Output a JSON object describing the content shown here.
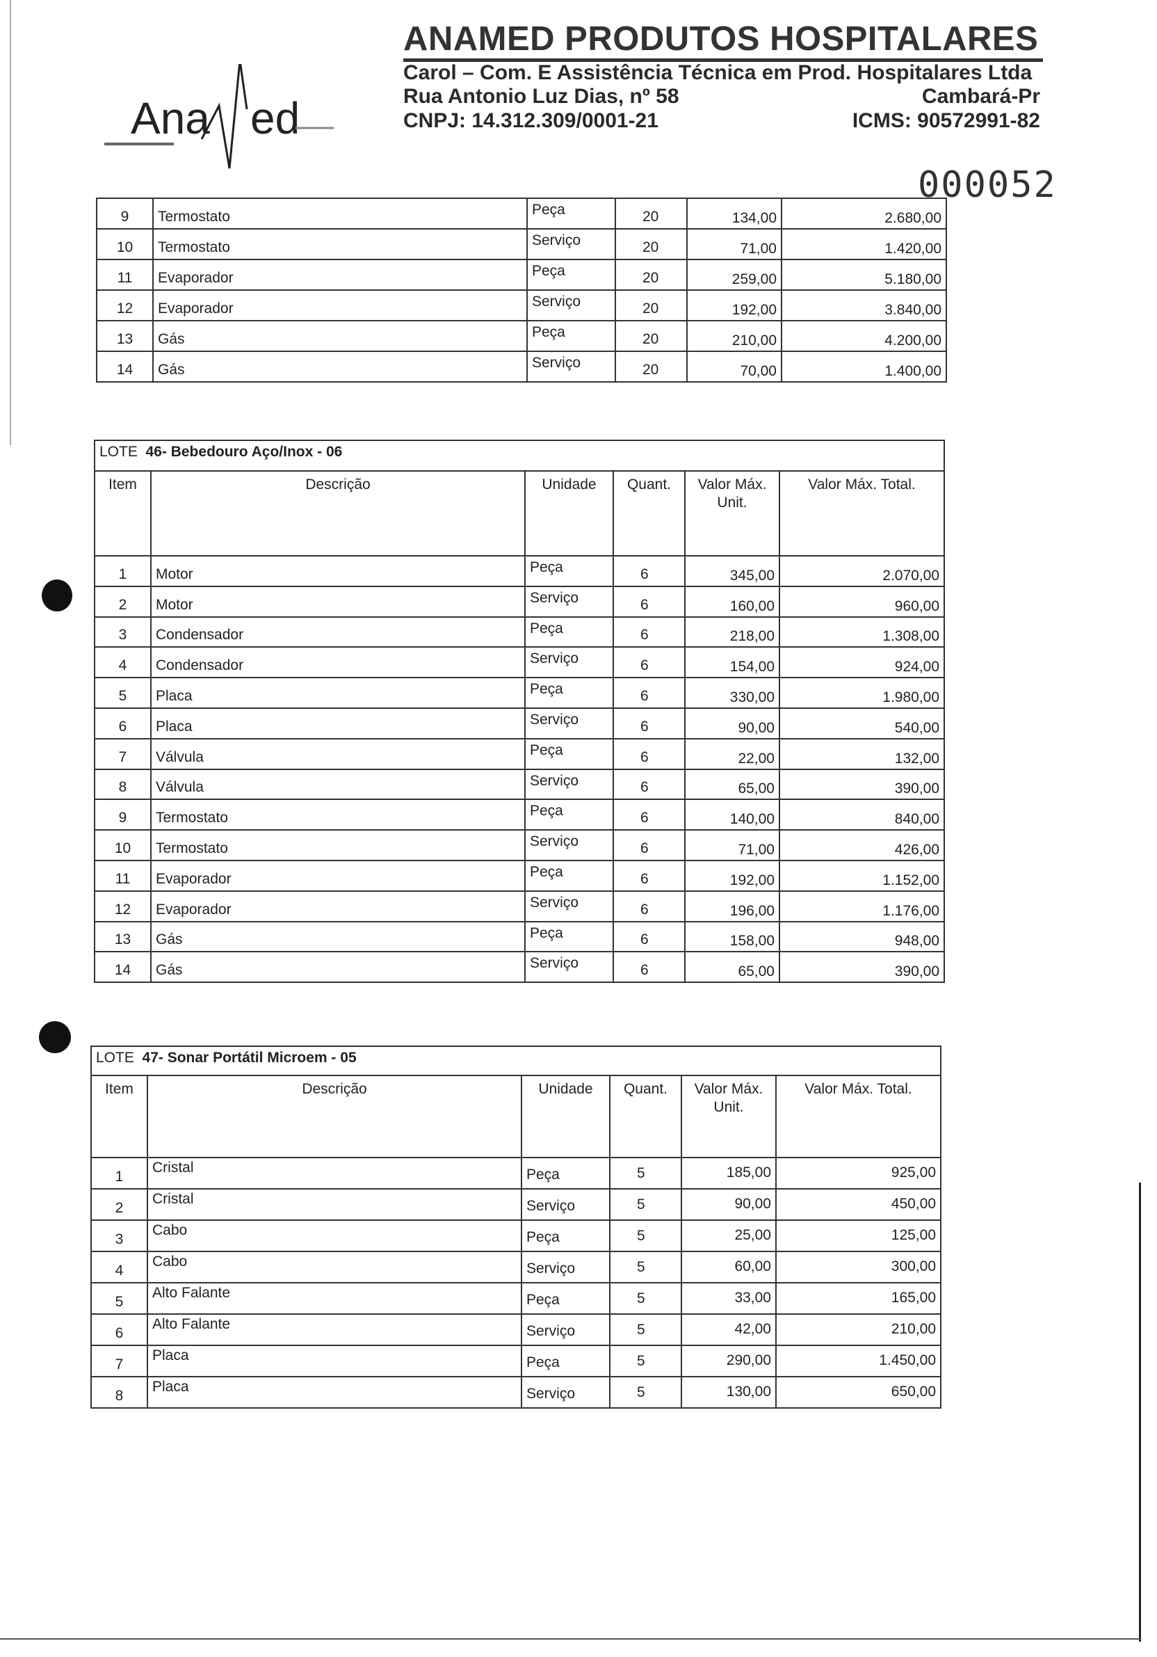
{
  "header": {
    "logo_text": "AnaMed",
    "company_title": "ANAMED  PRODUTOS  HOSPITALARES",
    "legal_name": "Carol – Com. E Assistência Técnica em Prod. Hospitalares Ltda",
    "address": "Rua Antonio Luz Dias, nº 58",
    "city": "Cambará-Pr",
    "cnpj": "CNPJ: 14.312.309/0001-21",
    "icms": "ICMS: 90572991-82",
    "page_number": "000052"
  },
  "columns": {
    "item": "Item",
    "descricao": "Descrição",
    "unidade": "Unidade",
    "quant": "Quant.",
    "valor_unit": "Valor Máx. Unit.",
    "valor_total": "Valor Máx. Total."
  },
  "table_continued": {
    "rows": [
      {
        "item": "9",
        "desc": "Termostato",
        "unit": "Peça",
        "qty": "20",
        "price": "134,00",
        "total": "2.680,00"
      },
      {
        "item": "10",
        "desc": "Termostato",
        "unit": "Serviço",
        "qty": "20",
        "price": "71,00",
        "total": "1.420,00"
      },
      {
        "item": "11",
        "desc": "Evaporador",
        "unit": "Peça",
        "qty": "20",
        "price": "259,00",
        "total": "5.180,00"
      },
      {
        "item": "12",
        "desc": "Evaporador",
        "unit": "Serviço",
        "qty": "20",
        "price": "192,00",
        "total": "3.840,00"
      },
      {
        "item": "13",
        "desc": "Gás",
        "unit": "Peça",
        "qty": "20",
        "price": "210,00",
        "total": "4.200,00"
      },
      {
        "item": "14",
        "desc": "Gás",
        "unit": "Serviço",
        "qty": "20",
        "price": "70,00",
        "total": "1.400,00"
      }
    ]
  },
  "lote46": {
    "label": "LOTE",
    "title": "46- Bebedouro Aço/Inox - 06",
    "rows": [
      {
        "item": "1",
        "desc": "Motor",
        "unit": "Peça",
        "qty": "6",
        "price": "345,00",
        "total": "2.070,00"
      },
      {
        "item": "2",
        "desc": "Motor",
        "unit": "Serviço",
        "qty": "6",
        "price": "160,00",
        "total": "960,00"
      },
      {
        "item": "3",
        "desc": "Condensador",
        "unit": "Peça",
        "qty": "6",
        "price": "218,00",
        "total": "1.308,00"
      },
      {
        "item": "4",
        "desc": "Condensador",
        "unit": "Serviço",
        "qty": "6",
        "price": "154,00",
        "total": "924,00"
      },
      {
        "item": "5",
        "desc": "Placa",
        "unit": "Peça",
        "qty": "6",
        "price": "330,00",
        "total": "1.980,00"
      },
      {
        "item": "6",
        "desc": "Placa",
        "unit": "Serviço",
        "qty": "6",
        "price": "90,00",
        "total": "540,00"
      },
      {
        "item": "7",
        "desc": "Válvula",
        "unit": "Peça",
        "qty": "6",
        "price": "22,00",
        "total": "132,00"
      },
      {
        "item": "8",
        "desc": "Válvula",
        "unit": "Serviço",
        "qty": "6",
        "price": "65,00",
        "total": "390,00"
      },
      {
        "item": "9",
        "desc": "Termostato",
        "unit": "Peça",
        "qty": "6",
        "price": "140,00",
        "total": "840,00"
      },
      {
        "item": "10",
        "desc": "Termostato",
        "unit": "Serviço",
        "qty": "6",
        "price": "71,00",
        "total": "426,00"
      },
      {
        "item": "11",
        "desc": "Evaporador",
        "unit": "Peça",
        "qty": "6",
        "price": "192,00",
        "total": "1.152,00"
      },
      {
        "item": "12",
        "desc": "Evaporador",
        "unit": "Serviço",
        "qty": "6",
        "price": "196,00",
        "total": "1.176,00"
      },
      {
        "item": "13",
        "desc": "Gás",
        "unit": "Peça",
        "qty": "6",
        "price": "158,00",
        "total": "948,00"
      },
      {
        "item": "14",
        "desc": "Gás",
        "unit": "Serviço",
        "qty": "6",
        "price": "65,00",
        "total": "390,00"
      }
    ]
  },
  "lote47": {
    "label": "LOTE",
    "title": "47- Sonar Portátil Microem - 05",
    "rows": [
      {
        "item": "1",
        "desc": "Cristal",
        "unit": "Peça",
        "qty": "5",
        "price": "185,00",
        "total": "925,00"
      },
      {
        "item": "2",
        "desc": "Cristal",
        "unit": "Serviço",
        "qty": "5",
        "price": "90,00",
        "total": "450,00"
      },
      {
        "item": "3",
        "desc": "Cabo",
        "unit": "Peça",
        "qty": "5",
        "price": "25,00",
        "total": "125,00"
      },
      {
        "item": "4",
        "desc": "Cabo",
        "unit": "Serviço",
        "qty": "5",
        "price": "60,00",
        "total": "300,00"
      },
      {
        "item": "5",
        "desc": "Alto Falante",
        "unit": "Peça",
        "qty": "5",
        "price": "33,00",
        "total": "165,00"
      },
      {
        "item": "6",
        "desc": "Alto Falante",
        "unit": "Serviço",
        "qty": "5",
        "price": "42,00",
        "total": "210,00"
      },
      {
        "item": "7",
        "desc": "Placa",
        "unit": "Peça",
        "qty": "5",
        "price": "290,00",
        "total": "1.450,00"
      },
      {
        "item": "8",
        "desc": "Placa",
        "unit": "Serviço",
        "qty": "5",
        "price": "130,00",
        "total": "650,00"
      }
    ]
  }
}
